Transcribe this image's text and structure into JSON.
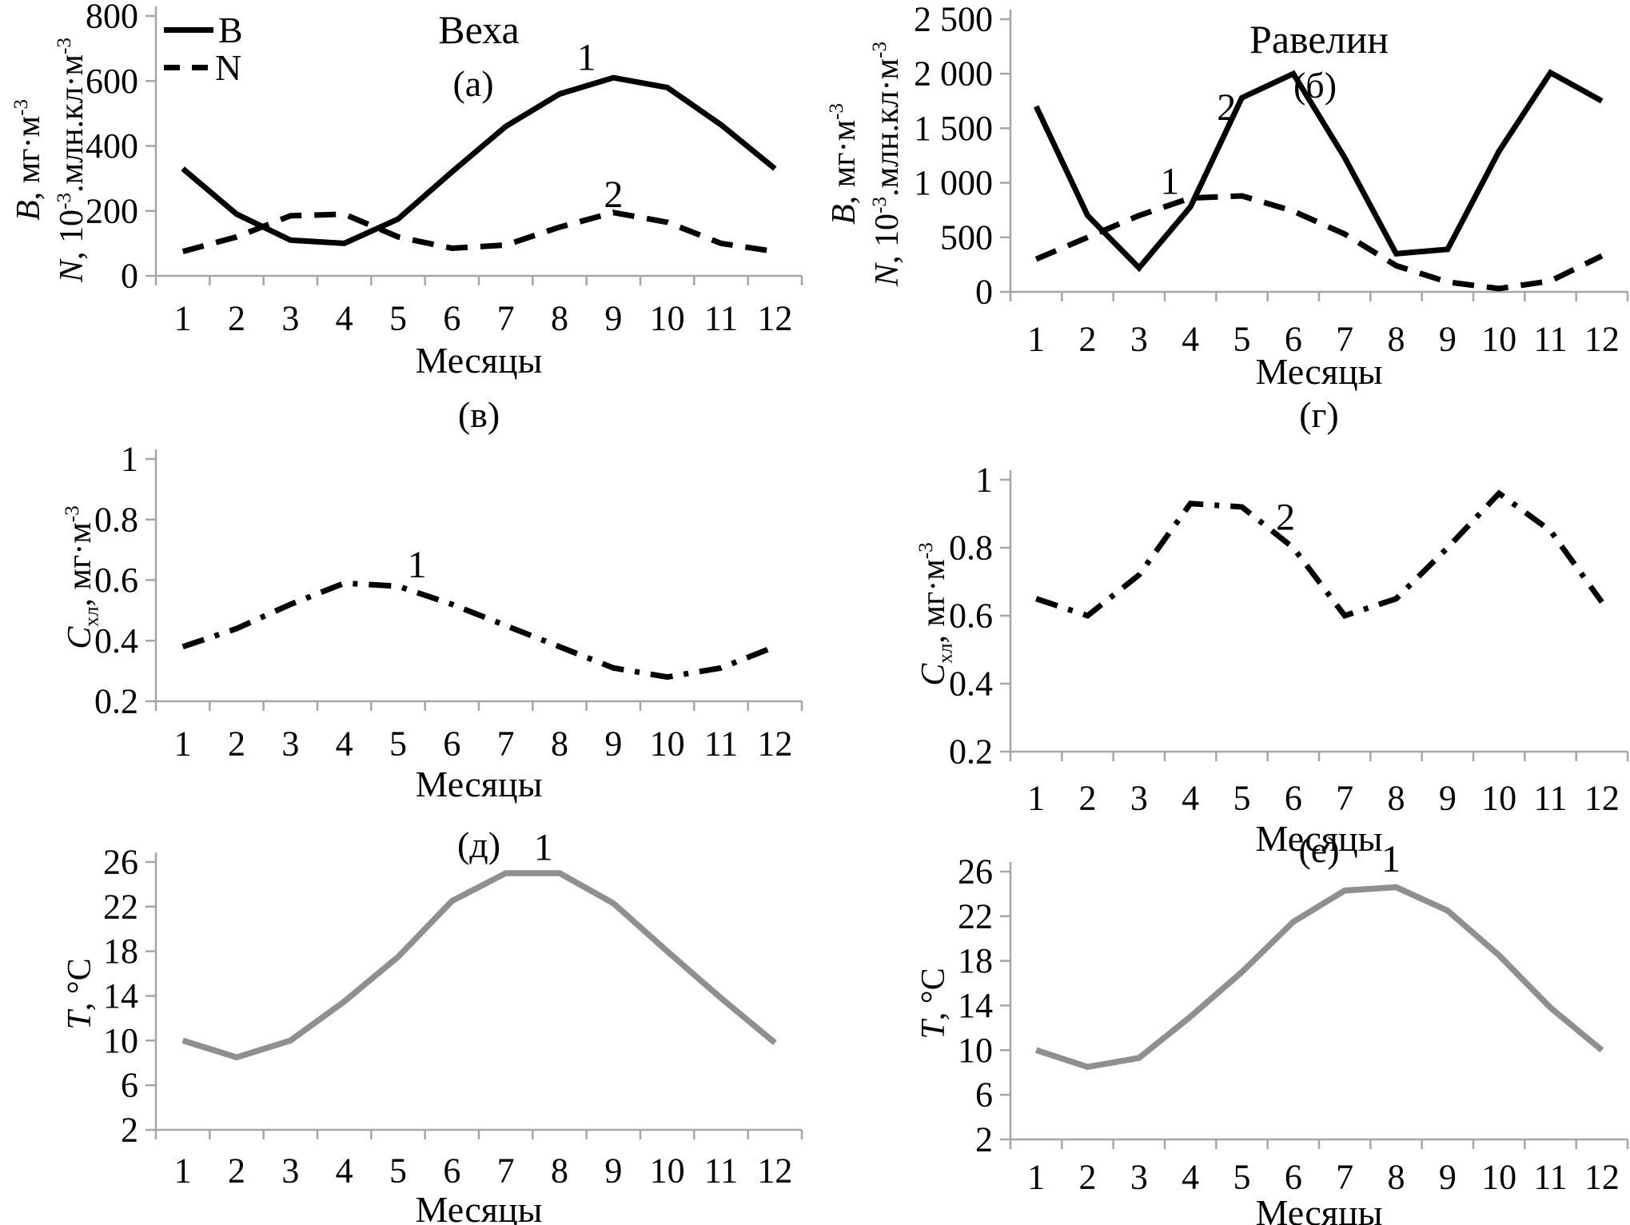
{
  "figure": {
    "months": [
      "1",
      "2",
      "3",
      "4",
      "5",
      "6",
      "7",
      "8",
      "9",
      "10",
      "11",
      "12"
    ],
    "xlabel": "Месяцы",
    "colors": {
      "line_black": "#000000",
      "line_gray": "#8f8f8f",
      "axis_gray": "#a6a6a6",
      "text": "#000000"
    }
  },
  "chart_data": [
    {
      "key": "a",
      "type": "line",
      "title": "Веха",
      "letter": "(а)",
      "xlabel": "Месяцы",
      "ylim": [
        0,
        800
      ],
      "yticks": {
        "values": [
          0,
          200,
          400,
          600,
          800
        ],
        "labels": [
          "0",
          "200",
          "400",
          "600",
          "800"
        ]
      },
      "ylabel": [
        [
          {
            "t": "B",
            "it": true
          },
          {
            "t": ", мг·м"
          },
          {
            "t": "-3",
            "sup": true
          }
        ],
        [
          {
            "t": "N",
            "it": true
          },
          {
            "t": ", 10"
          },
          {
            "t": "-3",
            "sup": true
          },
          {
            "t": ".млн.кл·м"
          },
          {
            "t": "-3",
            "sup": true
          }
        ]
      ],
      "legend": [
        {
          "label": "B",
          "dash": "solid"
        },
        {
          "label": "N",
          "dash": "dashed"
        }
      ],
      "series": [
        {
          "name": "B",
          "dash": "solid",
          "color": "#000000",
          "values": [
            330,
            190,
            110,
            100,
            175,
            320,
            460,
            560,
            610,
            580,
            465,
            330
          ]
        },
        {
          "name": "N",
          "dash": "dashed",
          "color": "#000000",
          "values": [
            75,
            120,
            185,
            190,
            120,
            85,
            95,
            150,
            195,
            165,
            100,
            75
          ]
        }
      ],
      "curve_labels": [
        {
          "text": "1",
          "month": 8.5,
          "value": 672
        },
        {
          "text": "2",
          "month": 9.0,
          "value": 250
        }
      ]
    },
    {
      "key": "b",
      "type": "line",
      "title": "Равелин",
      "letter": "(б)",
      "xlabel": "Месяцы",
      "ylim": [
        0,
        2500
      ],
      "yticks": {
        "values": [
          0,
          500,
          1000,
          1500,
          2000,
          2500
        ],
        "labels": [
          "0",
          "500",
          "1 000",
          "1 500",
          "2 000",
          "2 500"
        ]
      },
      "ylabel": [
        [
          {
            "t": "B",
            "it": true
          },
          {
            "t": ", мг·м"
          },
          {
            "t": "-3",
            "sup": true
          }
        ],
        [
          {
            "t": "N",
            "it": true
          },
          {
            "t": ", 10"
          },
          {
            "t": "-3",
            "sup": true
          },
          {
            "t": ".млн.кл·м"
          },
          {
            "t": "-3",
            "sup": true
          }
        ]
      ],
      "series": [
        {
          "name": "B",
          "dash": "solid",
          "color": "#000000",
          "values": [
            1700,
            700,
            220,
            780,
            1780,
            2000,
            1230,
            350,
            390,
            1290,
            2010,
            1750
          ]
        },
        {
          "name": "N",
          "dash": "dashed",
          "color": "#000000",
          "values": [
            300,
            500,
            700,
            860,
            880,
            740,
            530,
            240,
            90,
            30,
            100,
            330
          ]
        }
      ],
      "curve_labels": [
        {
          "text": "2",
          "month": 4.7,
          "value": 1690
        },
        {
          "text": "1",
          "month": 3.6,
          "value": 1010
        }
      ]
    },
    {
      "key": "v",
      "type": "line",
      "title": "",
      "letter": "(в)",
      "xlabel": "Месяцы",
      "ylim": [
        0.2,
        1
      ],
      "yticks": {
        "values": [
          0.2,
          0.4,
          0.6,
          0.8,
          1
        ],
        "labels": [
          "0.2",
          "0.4",
          "0.6",
          "0.8",
          "1"
        ]
      },
      "ylabel": [
        [
          {
            "t": "C",
            "it": true
          },
          {
            "t": "хл",
            "sub": true
          },
          {
            "t": ", мг·м"
          },
          {
            "t": "-3",
            "sup": true
          }
        ]
      ],
      "series": [
        {
          "name": "Cхл",
          "dash": "dashdot",
          "color": "#000000",
          "values": [
            0.38,
            0.44,
            0.52,
            0.59,
            0.58,
            0.52,
            0.45,
            0.38,
            0.31,
            0.28,
            0.31,
            0.38
          ]
        }
      ],
      "curve_labels": [
        {
          "text": "1",
          "month": 5.35,
          "value": 0.65
        }
      ]
    },
    {
      "key": "g",
      "type": "line",
      "title": "",
      "letter": "(г)",
      "xlabel": "Месяцы",
      "ylim": [
        0.2,
        1
      ],
      "yticks": {
        "values": [
          0.2,
          0.4,
          0.6,
          0.8,
          1
        ],
        "labels": [
          "0.2",
          "0.4",
          "0.6",
          "0.8",
          "1"
        ]
      },
      "ylabel": [
        [
          {
            "t": "C",
            "it": true
          },
          {
            "t": "хл",
            "sub": true
          },
          {
            "t": ", мг·м"
          },
          {
            "t": "-3",
            "sup": true
          }
        ]
      ],
      "series": [
        {
          "name": "Cхл",
          "dash": "dashdot",
          "color": "#000000",
          "values": [
            0.65,
            0.6,
            0.72,
            0.93,
            0.92,
            0.8,
            0.6,
            0.65,
            0.8,
            0.96,
            0.85,
            0.64
          ]
        }
      ],
      "curve_labels": [
        {
          "text": "2",
          "month": 5.85,
          "value": 0.89
        }
      ]
    },
    {
      "key": "d",
      "type": "line",
      "title": "",
      "letter": "(д)",
      "xlabel": "Месяцы",
      "ylim": [
        2,
        26
      ],
      "yticks": {
        "values": [
          2,
          6,
          10,
          14,
          18,
          22,
          26
        ],
        "labels": [
          "2",
          "6",
          "10",
          "14",
          "18",
          "22",
          "26"
        ]
      },
      "ylabel": [
        [
          {
            "t": "T",
            "it": true
          },
          {
            "t": ", °C"
          }
        ]
      ],
      "series": [
        {
          "name": "T",
          "dash": "solid",
          "color": "#8f8f8f",
          "values": [
            10,
            8.5,
            10,
            13.5,
            17.5,
            22.5,
            25,
            25,
            22.3,
            18,
            13.8,
            9.8
          ]
        }
      ],
      "curve_labels": [
        {
          "text": "1",
          "month": 7.7,
          "value": 27.3
        }
      ]
    },
    {
      "key": "e",
      "type": "line",
      "title": "",
      "letter": "(е)",
      "xlabel": "Месяцы",
      "ylim": [
        2,
        26
      ],
      "yticks": {
        "values": [
          2,
          6,
          10,
          14,
          18,
          22,
          26
        ],
        "labels": [
          "2",
          "6",
          "10",
          "14",
          "18",
          "22",
          "26"
        ]
      },
      "ylabel": [
        [
          {
            "t": "T",
            "it": true
          },
          {
            "t": ", °C"
          }
        ]
      ],
      "series": [
        {
          "name": "T",
          "dash": "solid",
          "color": "#8f8f8f",
          "values": [
            10,
            8.5,
            9.3,
            13,
            17,
            21.5,
            24.3,
            24.6,
            22.5,
            18.5,
            13.8,
            10
          ]
        }
      ],
      "curve_labels": [
        {
          "text": "1",
          "month": 7.9,
          "value": 27.1
        }
      ]
    }
  ]
}
